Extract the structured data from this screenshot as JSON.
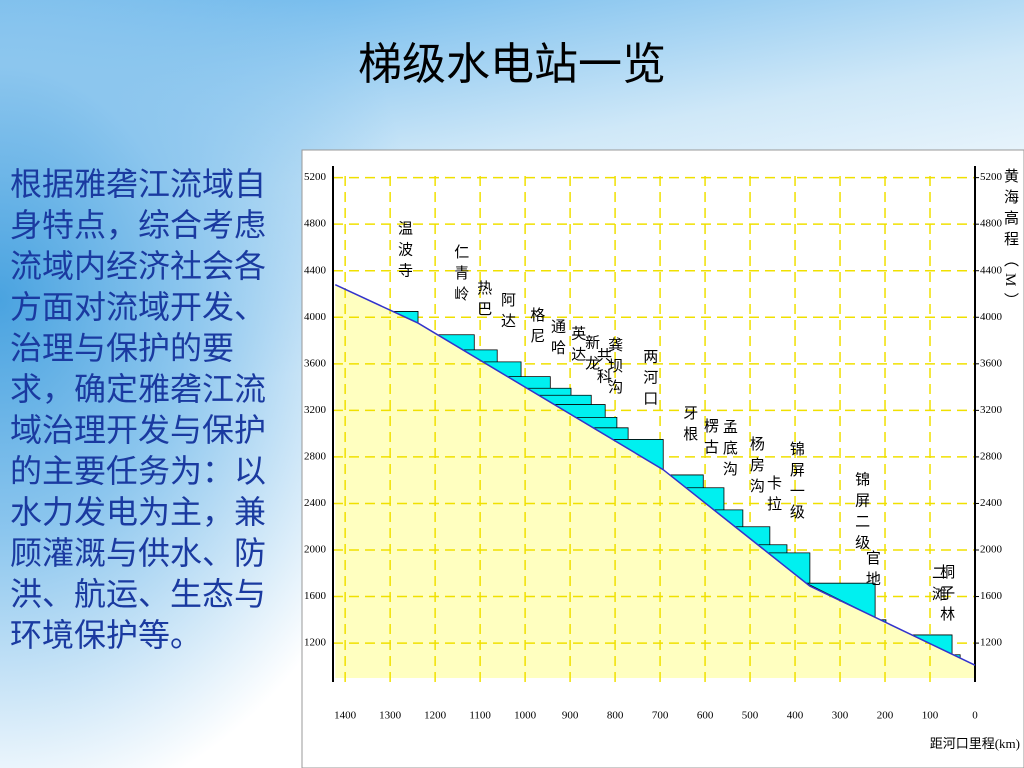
{
  "title": "梯级水电站一览",
  "body": "根据雅砻江流域自身特点，综合考虑流域内经济社会各方面对流域开发、治理与保护的要求，确定雅砻江流域治理开发与保护的主要任务为：以水力发电为主，兼顾灌溉与供水、防洪、航运、生态与环境保护等。",
  "chart_data": {
    "type": "profile",
    "x_label": "距河口里程(km)",
    "y2_label": "黄海高程（M）",
    "xlim": [
      1427,
      0
    ],
    "ylim": [
      900,
      5300
    ],
    "xticks": [
      1400,
      1300,
      1200,
      1100,
      1000,
      900,
      800,
      700,
      600,
      500,
      400,
      300,
      200,
      100,
      0
    ],
    "yticks": [
      1200,
      1600,
      2000,
      2400,
      2800,
      3200,
      3600,
      4000,
      4400,
      4800,
      5200
    ],
    "y2ticks": [
      1200,
      1600,
      2000,
      2400,
      2800,
      3200,
      3600,
      4000,
      4400,
      4800,
      5200
    ],
    "grid": true,
    "bed_color": "#3333cc",
    "ground_color": "#ffffc0",
    "reservoir_color": "#00f0f0",
    "bed": {
      "km": [
        1422,
        1238,
        693,
        367,
        0
      ],
      "elevation": [
        4280,
        3950,
        2690,
        1690,
        1010
      ]
    },
    "stations": [
      {
        "name": "温波寺",
        "km": 1238,
        "level": 4050
      },
      {
        "name": "仁青岭",
        "km": 1113,
        "level": 3850
      },
      {
        "name": "热巴",
        "km": 1062,
        "level": 3720
      },
      {
        "name": "阿达",
        "km": 1009,
        "level": 3617
      },
      {
        "name": "格尼",
        "km": 944,
        "level": 3490
      },
      {
        "name": "通哈",
        "km": 898,
        "level": 3390
      },
      {
        "name": "英达",
        "km": 853,
        "level": 3330
      },
      {
        "name": "新龙",
        "km": 822,
        "level": 3250
      },
      {
        "name": "共科",
        "km": 796,
        "level": 3140
      },
      {
        "name": "龚坝沟",
        "km": 771,
        "level": 3050
      },
      {
        "name": "两河口",
        "km": 693,
        "level": 2950
      },
      {
        "name": "牙根",
        "km": 604,
        "level": 2645
      },
      {
        "name": "楞古",
        "km": 558,
        "level": 2535
      },
      {
        "name": "孟底沟",
        "km": 516,
        "level": 2345
      },
      {
        "name": "杨房沟",
        "km": 456,
        "level": 2200
      },
      {
        "name": "卡拉",
        "km": 418,
        "level": 2045
      },
      {
        "name": "锦屏一级",
        "km": 367,
        "level": 1975
      },
      {
        "name": "锦屏二级",
        "km": 222,
        "level": 1715
      },
      {
        "name": "官地",
        "km": 198,
        "level": 1400
      },
      {
        "name": "二滩",
        "km": 51,
        "level": 1270
      },
      {
        "name": "桐子林",
        "km": 33,
        "level": 1100
      }
    ]
  }
}
